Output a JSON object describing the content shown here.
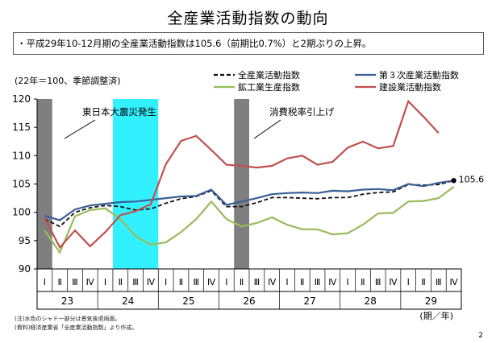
{
  "title": "全産業活動指数の動向",
  "summary": "・平成29年10-12月期の全産業活動指数は105.6（前期比0.7%）と2期ぶりの上昇。",
  "notes": [
    "(注)水色のシャド一部分は景気後退局面。",
    "(資料)経済産業省「全産業活動指数」より作成。"
  ],
  "page_number": "2",
  "chart_data": {
    "type": "line",
    "unit_label": "(22年＝100、季節調整済)",
    "xlabel": "(期／年)",
    "ylim": [
      90,
      120
    ],
    "yticks": [
      90,
      95,
      100,
      105,
      110,
      115,
      120
    ],
    "quarter_labels": [
      "Ⅰ",
      "Ⅱ",
      "Ⅲ",
      "Ⅳ",
      "Ⅰ",
      "Ⅱ",
      "Ⅲ",
      "Ⅳ",
      "Ⅰ",
      "Ⅱ",
      "Ⅲ",
      "Ⅳ",
      "Ⅰ",
      "Ⅱ",
      "Ⅲ",
      "Ⅳ",
      "Ⅰ",
      "Ⅱ",
      "Ⅲ",
      "Ⅳ",
      "Ⅰ",
      "Ⅱ",
      "Ⅲ",
      "Ⅳ",
      "Ⅰ",
      "Ⅱ",
      "Ⅲ",
      "Ⅳ"
    ],
    "year_labels": [
      {
        "label": "23",
        "start": 0
      },
      {
        "label": "24",
        "start": 4
      },
      {
        "label": "25",
        "start": 8
      },
      {
        "label": "26",
        "start": 12
      },
      {
        "label": "27",
        "start": 16
      },
      {
        "label": "28",
        "start": 20
      },
      {
        "label": "29",
        "start": 24
      }
    ],
    "series": [
      {
        "name": "全産業活動指数",
        "color": "#111111",
        "dash": true,
        "values": [
          98.8,
          97.5,
          100.0,
          100.8,
          101.2,
          101.0,
          100.4,
          100.6,
          101.6,
          102.4,
          102.8,
          103.8,
          101.0,
          101.0,
          101.7,
          102.6,
          102.6,
          102.5,
          102.4,
          102.6,
          102.6,
          103.2,
          103.5,
          103.6,
          104.9,
          104.8,
          104.9,
          105.6
        ]
      },
      {
        "name": "第３次産業活動指数",
        "color": "#3a5f96",
        "dash": false,
        "values": [
          99.4,
          98.6,
          100.5,
          101.2,
          101.5,
          101.8,
          101.9,
          102.2,
          102.5,
          102.8,
          102.9,
          104.0,
          101.3,
          101.9,
          102.5,
          103.2,
          103.4,
          103.5,
          103.4,
          103.8,
          103.7,
          104.0,
          104.1,
          103.9,
          105.0,
          104.6,
          105.2,
          105.6
        ]
      },
      {
        "name": "鉱工業生産指数",
        "color": "#9aba5a",
        "dash": false,
        "values": [
          96.8,
          92.9,
          99.3,
          100.4,
          100.7,
          98.8,
          95.8,
          94.3,
          94.7,
          96.5,
          98.8,
          101.9,
          98.8,
          97.5,
          98.1,
          99.1,
          97.8,
          97.0,
          97.0,
          96.1,
          96.3,
          97.8,
          99.8,
          99.9,
          101.9,
          102.0,
          102.5,
          104.5
        ]
      },
      {
        "name": "建設業活動指数",
        "color": "#c0504d",
        "dash": false,
        "values": [
          99.0,
          93.8,
          96.8,
          94.0,
          96.5,
          99.5,
          100.2,
          101.4,
          108.5,
          112.6,
          113.5,
          111.0,
          108.4,
          108.2,
          107.9,
          108.2,
          109.5,
          110.0,
          108.4,
          108.9,
          111.4,
          112.5,
          111.3,
          111.7,
          119.6,
          116.9,
          114.0
        ]
      }
    ],
    "shaded_periods": [
      {
        "label": "東日本大震災発生",
        "start": 0,
        "end": 0,
        "color": "#7f7f7f"
      },
      {
        "label": "",
        "start": 5,
        "end": 7,
        "color": "#33f0ff"
      },
      {
        "label": "消費税率引上げ",
        "start": 13,
        "end": 13,
        "color": "#7f7f7f"
      }
    ],
    "end_value_label": "105.6"
  }
}
